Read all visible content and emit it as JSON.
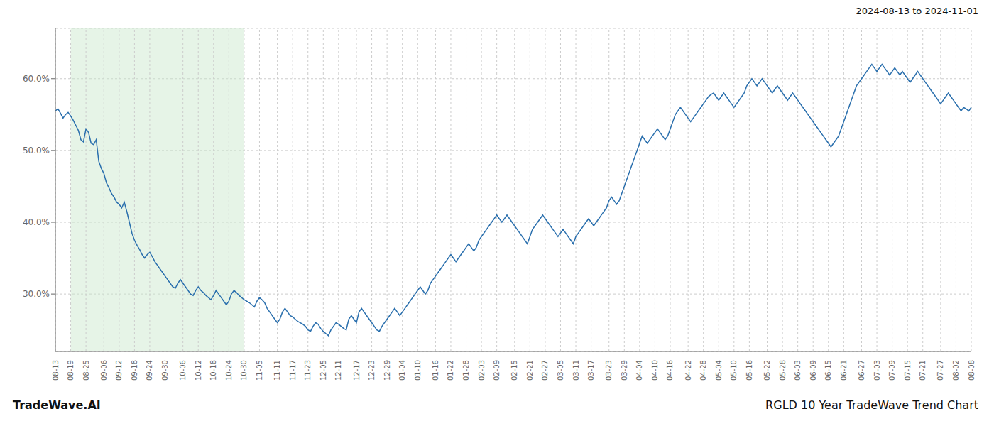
{
  "chart_data": {
    "type": "line",
    "title": "RGLD 10 Year TradeWave Trend Chart",
    "subtitle": "2024-08-13 to 2024-11-01",
    "annotations": [
      "TradeWave.AI"
    ],
    "categories": [
      "08-13",
      null,
      null,
      null,
      null,
      null,
      "08-19",
      null,
      null,
      null,
      null,
      null,
      "08-25",
      null,
      null,
      null,
      null,
      null,
      null,
      "09-06",
      null,
      null,
      null,
      null,
      null,
      "09-12",
      null,
      null,
      null,
      null,
      null,
      "09-18",
      null,
      null,
      null,
      null,
      null,
      "09-24",
      null,
      null,
      null,
      null,
      null,
      "09-30",
      null,
      null,
      null,
      null,
      null,
      null,
      "10-06",
      null,
      null,
      null,
      null,
      null,
      "10-12",
      null,
      null,
      null,
      null,
      null,
      "10-18",
      null,
      null,
      null,
      null,
      null,
      "10-24",
      null,
      null,
      null,
      null,
      null,
      "10-30",
      null,
      null,
      null,
      null,
      null,
      "11-05",
      null,
      null,
      null,
      null,
      null,
      null,
      "11-11",
      null,
      null,
      null,
      null,
      null,
      "11-17",
      null,
      null,
      null,
      null,
      null,
      "11-23",
      null,
      null,
      null,
      null,
      null,
      "12-05",
      null,
      null,
      null,
      null,
      null,
      "12-11",
      null,
      null,
      null,
      null,
      null,
      null,
      "12-17",
      null,
      null,
      null,
      null,
      null,
      "12-23",
      null,
      null,
      null,
      null,
      null,
      "12-29",
      null,
      null,
      null,
      null,
      null,
      "01-04",
      null,
      null,
      null,
      null,
      null,
      "01-10",
      null,
      null,
      null,
      null,
      null,
      null,
      "01-16",
      null,
      null,
      null,
      null,
      null,
      "01-22",
      null,
      null,
      null,
      null,
      null,
      "01-28",
      null,
      null,
      null,
      null,
      null,
      "02-03",
      null,
      null,
      null,
      null,
      null,
      "02-09",
      null,
      null,
      null,
      null,
      null,
      null,
      "02-15",
      null,
      null,
      null,
      null,
      null,
      "02-21",
      null,
      null,
      null,
      null,
      null,
      "02-27",
      null,
      null,
      null,
      null,
      null,
      "03-05",
      null,
      null,
      null,
      null,
      null,
      "03-11",
      null,
      null,
      null,
      null,
      null,
      "03-17",
      null,
      null,
      null,
      null,
      null,
      null,
      "03-23",
      null,
      null,
      null,
      null,
      null,
      "03-29",
      null,
      null,
      null,
      null,
      null,
      "04-04",
      null,
      null,
      null,
      null,
      null,
      "04-10",
      null,
      null,
      null,
      null,
      null,
      "04-16",
      null,
      null,
      null,
      null,
      null,
      null,
      "04-22",
      null,
      null,
      null,
      null,
      null,
      "04-28",
      null,
      null,
      null,
      null,
      null,
      "05-04",
      null,
      null,
      null,
      null,
      null,
      "05-10",
      null,
      null,
      null,
      null,
      null,
      "05-16",
      null,
      null,
      null,
      null,
      null,
      null,
      "05-22",
      null,
      null,
      null,
      null,
      null,
      "05-28",
      null,
      null,
      null,
      null,
      null,
      "06-03",
      null,
      null,
      null,
      null,
      null,
      "06-09",
      null,
      null,
      null,
      null,
      null,
      "06-15",
      null,
      null,
      null,
      null,
      null,
      "06-21",
      null,
      null,
      null,
      null,
      null,
      null,
      "06-27",
      null,
      null,
      null,
      null,
      null,
      "07-03",
      null,
      null,
      null,
      null,
      null,
      "07-09",
      null,
      null,
      null,
      null,
      null,
      "07-15",
      null,
      null,
      null,
      null,
      null,
      "07-21",
      null,
      null,
      null,
      null,
      null,
      null,
      "07-27",
      null,
      null,
      null,
      null,
      null,
      "08-02",
      null,
      null,
      null,
      null,
      null,
      "08-08"
    ],
    "values": [
      55.5,
      55.8,
      55.2,
      54.5,
      55.0,
      55.3,
      54.8,
      54.2,
      53.5,
      52.8,
      51.5,
      51.2,
      53.0,
      52.5,
      51.0,
      50.8,
      51.5,
      48.5,
      47.5,
      46.8,
      45.5,
      44.8,
      44.0,
      43.5,
      42.8,
      42.5,
      42.0,
      42.8,
      41.5,
      40.0,
      38.5,
      37.5,
      36.8,
      36.2,
      35.5,
      35.0,
      35.5,
      35.8,
      35.2,
      34.5,
      34.0,
      33.5,
      33.0,
      32.5,
      32.0,
      31.5,
      31.0,
      30.8,
      31.5,
      32.0,
      31.5,
      31.0,
      30.5,
      30.0,
      29.8,
      30.5,
      31.0,
      30.5,
      30.2,
      29.8,
      29.5,
      29.2,
      29.8,
      30.5,
      30.0,
      29.5,
      29.0,
      28.5,
      29.0,
      30.0,
      30.5,
      30.2,
      29.8,
      29.5,
      29.2,
      29.0,
      28.8,
      28.5,
      28.2,
      29.0,
      29.5,
      29.2,
      28.8,
      28.0,
      27.5,
      27.0,
      26.5,
      26.0,
      26.5,
      27.5,
      28.0,
      27.5,
      27.0,
      26.8,
      26.5,
      26.2,
      26.0,
      25.8,
      25.5,
      25.0,
      24.8,
      25.5,
      26.0,
      25.8,
      25.2,
      24.8,
      24.5,
      24.2,
      25.0,
      25.5,
      26.0,
      25.8,
      25.5,
      25.2,
      25.0,
      26.5,
      27.0,
      26.5,
      26.0,
      27.5,
      28.0,
      27.5,
      27.0,
      26.5,
      26.0,
      25.5,
      25.0,
      24.8,
      25.5,
      26.0,
      26.5,
      27.0,
      27.5,
      28.0,
      27.5,
      27.0,
      27.5,
      28.0,
      28.5,
      29.0,
      29.5,
      30.0,
      30.5,
      31.0,
      30.5,
      30.0,
      30.5,
      31.5,
      32.0,
      32.5,
      33.0,
      33.5,
      34.0,
      34.5,
      35.0,
      35.5,
      35.0,
      34.5,
      35.0,
      35.5,
      36.0,
      36.5,
      37.0,
      36.5,
      36.0,
      36.5,
      37.5,
      38.0,
      38.5,
      39.0,
      39.5,
      40.0,
      40.5,
      41.0,
      40.5,
      40.0,
      40.5,
      41.0,
      40.5,
      40.0,
      39.5,
      39.0,
      38.5,
      38.0,
      37.5,
      37.0,
      38.0,
      39.0,
      39.5,
      40.0,
      40.5,
      41.0,
      40.5,
      40.0,
      39.5,
      39.0,
      38.5,
      38.0,
      38.5,
      39.0,
      38.5,
      38.0,
      37.5,
      37.0,
      38.0,
      38.5,
      39.0,
      39.5,
      40.0,
      40.5,
      40.0,
      39.5,
      40.0,
      40.5,
      41.0,
      41.5,
      42.0,
      43.0,
      43.5,
      43.0,
      42.5,
      43.0,
      44.0,
      45.0,
      46.0,
      47.0,
      48.0,
      49.0,
      50.0,
      51.0,
      52.0,
      51.5,
      51.0,
      51.5,
      52.0,
      52.5,
      53.0,
      52.5,
      52.0,
      51.5,
      52.0,
      53.0,
      54.0,
      55.0,
      55.5,
      56.0,
      55.5,
      55.0,
      54.5,
      54.0,
      54.5,
      55.0,
      55.5,
      56.0,
      56.5,
      57.0,
      57.5,
      57.8,
      58.0,
      57.5,
      57.0,
      57.5,
      58.0,
      57.5,
      57.0,
      56.5,
      56.0,
      56.5,
      57.0,
      57.5,
      58.0,
      59.0,
      59.5,
      60.0,
      59.5,
      59.0,
      59.5,
      60.0,
      59.5,
      59.0,
      58.5,
      58.0,
      58.5,
      59.0,
      58.5,
      58.0,
      57.5,
      57.0,
      57.5,
      58.0,
      57.5,
      57.0,
      56.5,
      56.0,
      55.5,
      55.0,
      54.5,
      54.0,
      53.5,
      53.0,
      52.5,
      52.0,
      51.5,
      51.0,
      50.5,
      51.0,
      51.5,
      52.0,
      53.0,
      54.0,
      55.0,
      56.0,
      57.0,
      58.0,
      59.0,
      59.5,
      60.0,
      60.5,
      61.0,
      61.5,
      62.0,
      61.5,
      61.0,
      61.5,
      62.0,
      61.5,
      61.0,
      60.5,
      61.0,
      61.5,
      61.0,
      60.5,
      61.0,
      60.5,
      60.0,
      59.5,
      60.0,
      60.5,
      61.0,
      60.5,
      60.0,
      59.5,
      59.0,
      58.5,
      58.0,
      57.5,
      57.0,
      56.5,
      57.0,
      57.5,
      58.0,
      57.5,
      57.0,
      56.5,
      56.0,
      55.5,
      56.0,
      55.8,
      55.5,
      56.0
    ],
    "color": "#2a6fad",
    "ylim": [
      22,
      67
    ],
    "yticks": [
      {
        "value": 30,
        "label": "30.0%"
      },
      {
        "value": 40,
        "label": "40.0%"
      },
      {
        "value": 50,
        "label": "50.0%"
      },
      {
        "value": 60,
        "label": "60.0%"
      }
    ],
    "grid": true,
    "shaded_range": {
      "from": "08-19",
      "to": "10-30",
      "color": "#c8e6c9"
    }
  }
}
